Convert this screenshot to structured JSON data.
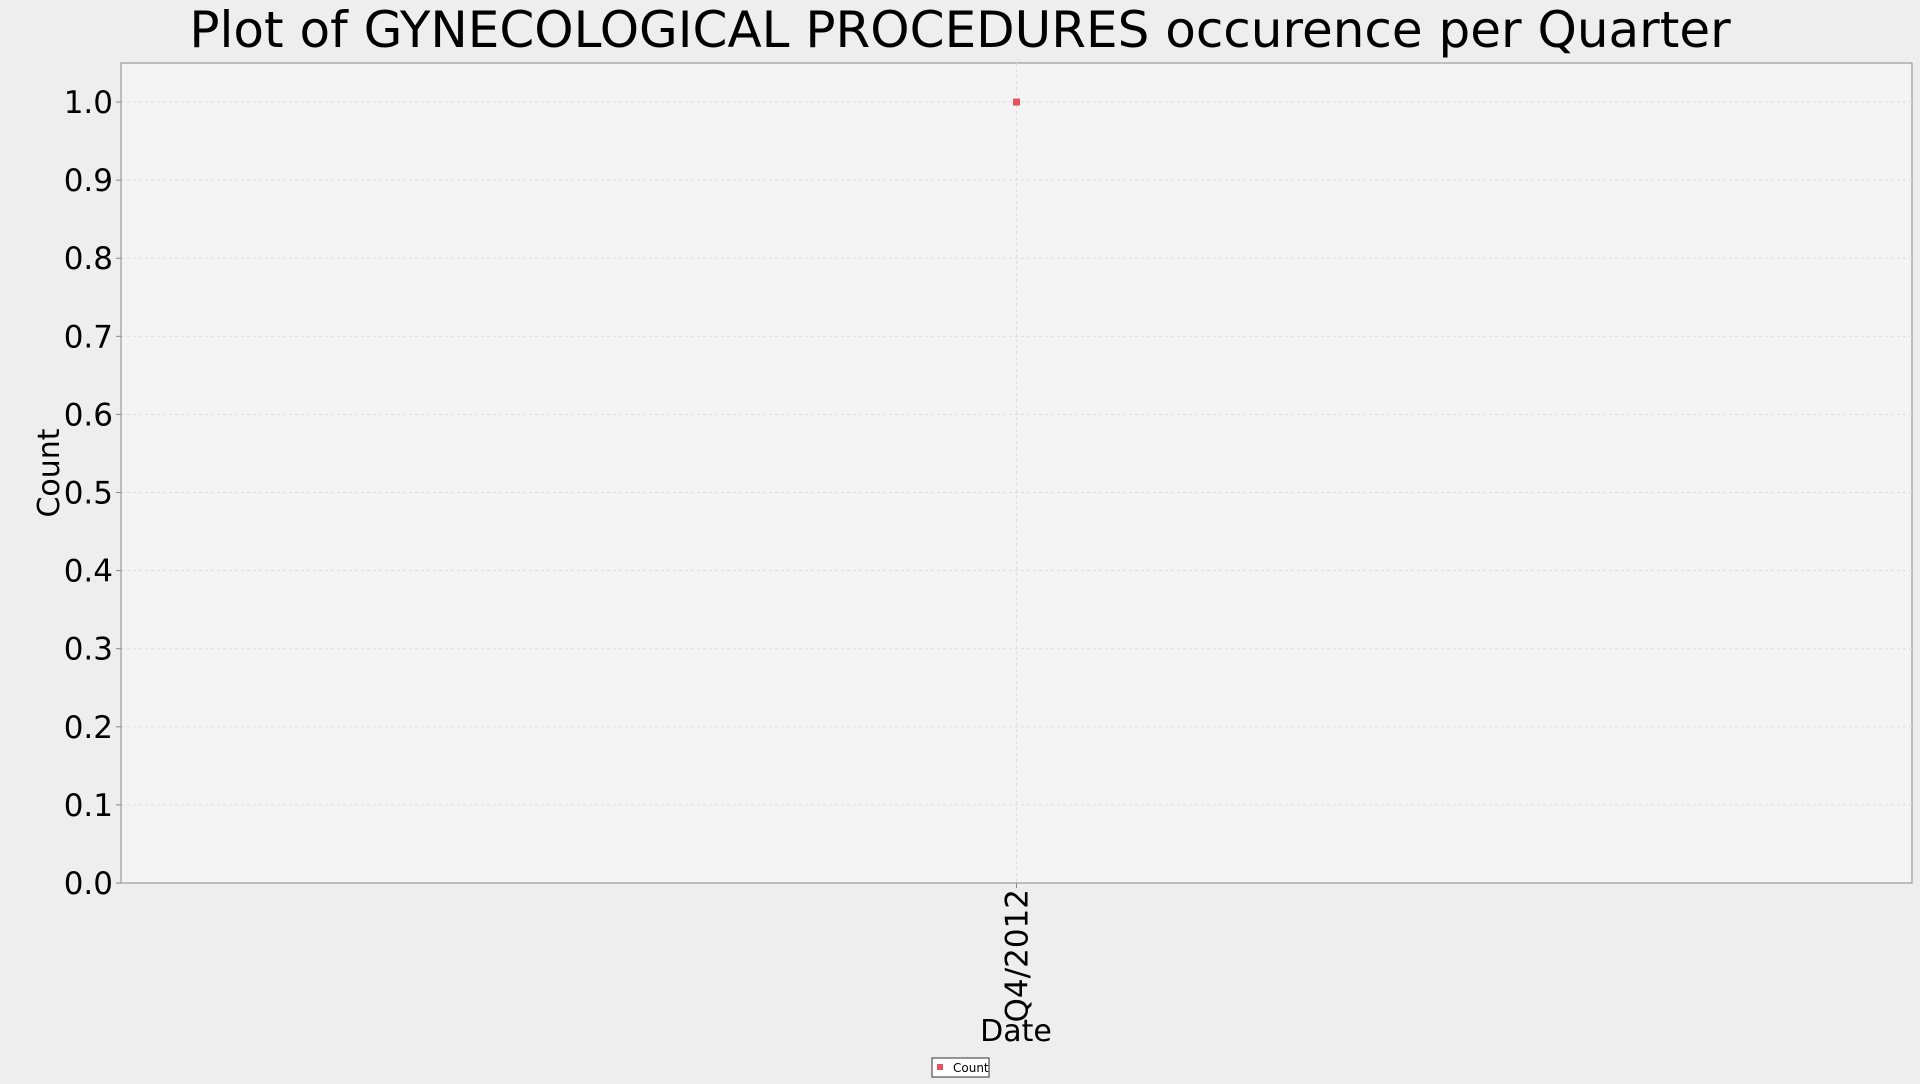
{
  "chart_data": {
    "type": "scatter",
    "title": "Plot of GYNECOLOGICAL PROCEDURES occurence per Quarter",
    "xlabel": "Date",
    "ylabel": "Count",
    "categories": [
      "Q4/2012"
    ],
    "series": [
      {
        "name": "Count",
        "color": "#e8505b",
        "values": [
          1.0
        ]
      }
    ],
    "ylim": [
      0.0,
      1.05
    ],
    "yticks": [
      "0.0",
      "0.1",
      "0.2",
      "0.3",
      "0.4",
      "0.5",
      "0.6",
      "0.7",
      "0.8",
      "0.9",
      "1.0"
    ],
    "grid": true,
    "legend": "bottom-center"
  },
  "colors": {
    "page_background": "#eeeeee",
    "plot_background": "#f4f4f4",
    "grid": "#dddddd",
    "axis": "#888888"
  }
}
